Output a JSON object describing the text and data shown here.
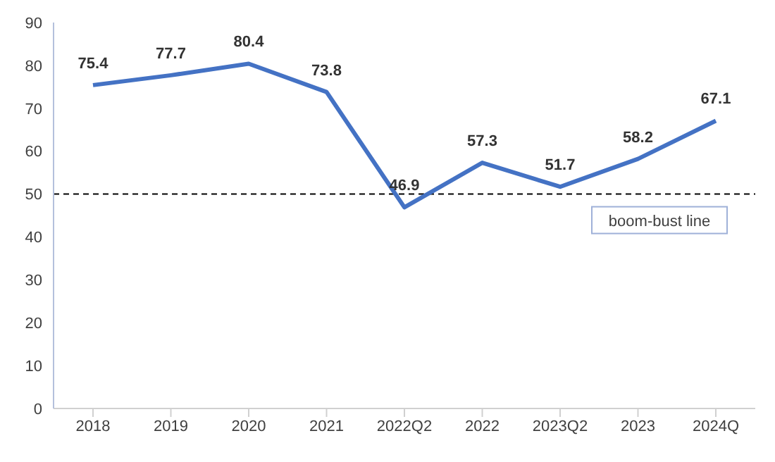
{
  "chart_data": {
    "type": "line",
    "categories": [
      "2018",
      "2019",
      "2020",
      "2021",
      "2022Q2",
      "2022",
      "2023Q2",
      "2023",
      "2024Q"
    ],
    "series": [
      {
        "color": "#4472c4",
        "values": [
          75.4,
          77.7,
          80.4,
          73.8,
          46.9,
          57.3,
          51.7,
          58.2,
          67.1
        ]
      }
    ],
    "ylim": [
      0,
      90
    ],
    "yticks": [
      0,
      10,
      20,
      30,
      40,
      50,
      60,
      70,
      80,
      90
    ],
    "grid": false,
    "legend": false,
    "marker": "none",
    "data_labels": true,
    "ref_lines": [
      {
        "axis": "y",
        "value": 50,
        "label": "boom-bust line",
        "color": "#000000",
        "line_style": "dashed"
      }
    ]
  }
}
